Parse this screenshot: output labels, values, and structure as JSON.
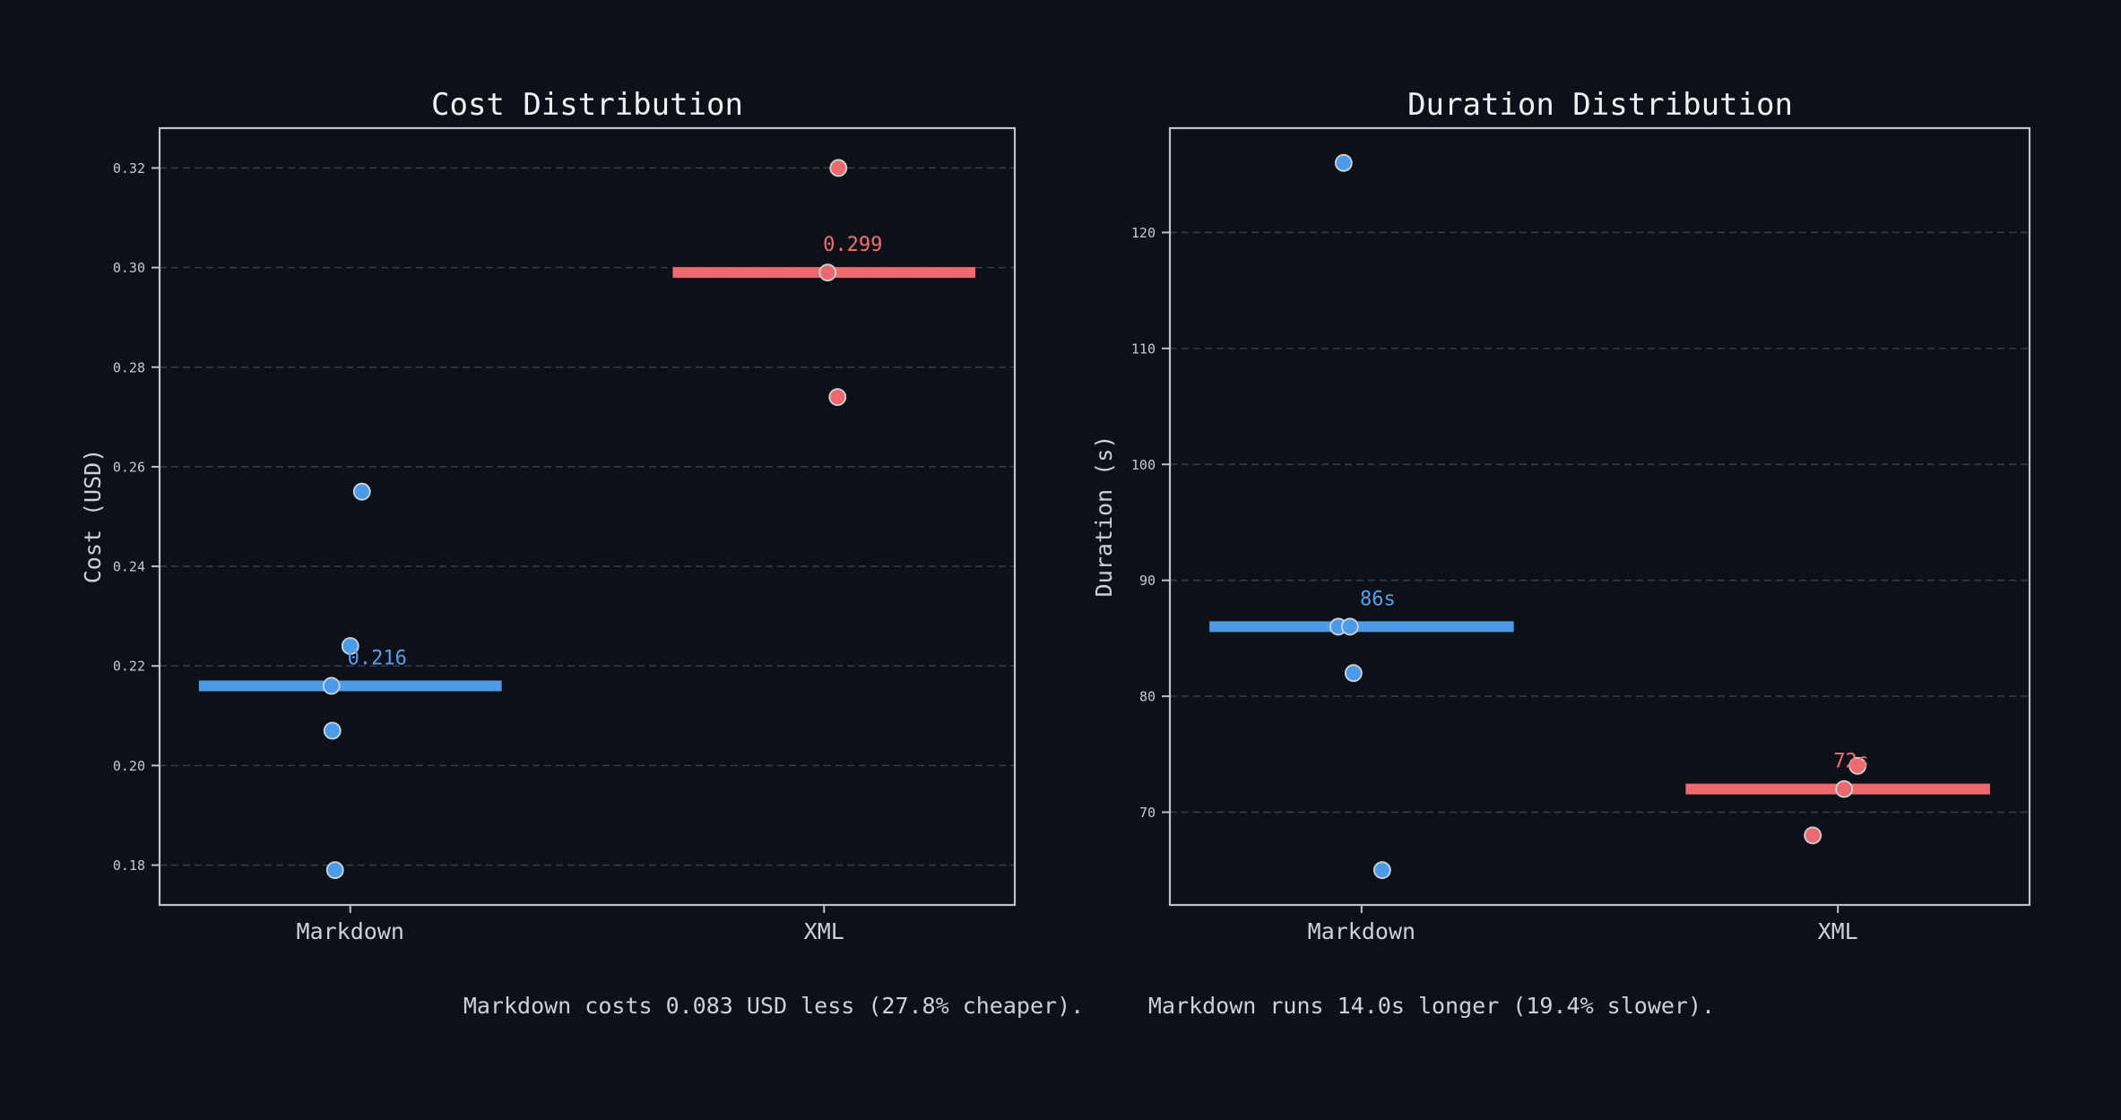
{
  "figure": {
    "background": "#0d1117"
  },
  "colors": {
    "blue": "#4c9be8",
    "red": "#ec6a6e",
    "blue_label": "#54a0ee",
    "red_label": "#ee7177",
    "tick_text": "#c3cad1",
    "text": "#c9d1d9",
    "title": "#eef2f6",
    "grid": "#343b49",
    "spine": "#b9c1c9",
    "point_edge": "#ccd2d8"
  },
  "chart_data": [
    {
      "type": "scatter",
      "title": "Cost Distribution",
      "ylabel": "Cost (USD)",
      "xlabel": "",
      "categories": [
        "Markdown",
        "XML"
      ],
      "ylim": [
        0.172,
        0.328
      ],
      "yticks": [
        0.18,
        0.2,
        0.22,
        0.24,
        0.26,
        0.28,
        0.3,
        0.32
      ],
      "ytick_labels": [
        "0.18",
        "0.20",
        "0.22",
        "0.24",
        "0.26",
        "0.28",
        "0.30",
        "0.32"
      ],
      "grid": "horizontal-dashed",
      "legend_position": "none",
      "series": [
        {
          "name": "Markdown",
          "color": "blue",
          "values": [
            0.255,
            0.224,
            0.216,
            0.207,
            0.179
          ],
          "median": 0.216,
          "median_label": "0.216",
          "jitter_dx": [
            13,
            0,
            -21,
            -20,
            -17
          ],
          "label_dx": 30
        },
        {
          "name": "XML",
          "color": "red",
          "values": [
            0.32,
            0.299,
            0.274
          ],
          "median": 0.299,
          "median_label": "0.299",
          "jitter_dx": [
            16,
            4,
            15
          ],
          "label_dx": 32
        }
      ]
    },
    {
      "type": "scatter",
      "title": "Duration Distribution",
      "ylabel": "Duration (s)",
      "xlabel": "",
      "categories": [
        "Markdown",
        "XML"
      ],
      "ylim": [
        62,
        129
      ],
      "yticks": [
        70,
        80,
        90,
        100,
        110,
        120
      ],
      "ytick_labels": [
        "70",
        "80",
        "90",
        "100",
        "110",
        "120"
      ],
      "grid": "horizontal-dashed",
      "legend_position": "none",
      "series": [
        {
          "name": "Markdown",
          "color": "blue",
          "values": [
            126,
            86,
            86,
            82,
            65
          ],
          "median": 86,
          "median_label": "86s",
          "jitter_dx": [
            -20,
            -26,
            -13,
            -9,
            23
          ],
          "label_dx": 18
        },
        {
          "name": "XML",
          "color": "red",
          "values": [
            74,
            72,
            68
          ],
          "median": 72,
          "median_label": "72s",
          "jitter_dx": [
            22,
            7,
            -28
          ],
          "label_dx": 15
        }
      ]
    }
  ],
  "captions": [
    {
      "text": "Markdown costs 0.083 USD less (27.8% cheaper)."
    },
    {
      "text": "Markdown runs 14.0s longer (19.4% slower)."
    }
  ]
}
